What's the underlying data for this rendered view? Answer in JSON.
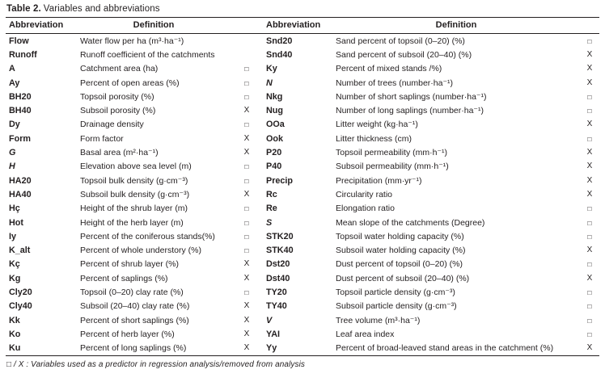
{
  "colors": {
    "text": "#231f20",
    "rule": "#231f20",
    "background": "#ffffff"
  },
  "caption": {
    "number": "Table 2.",
    "text": "Variables and abbreviations"
  },
  "header": {
    "abbreviation_left": "Abbreviation",
    "definition_left": "Definition",
    "abbreviation_right": "Abbreviation",
    "definition_right": "Definition"
  },
  "marker_glyphs": {
    "predictor": "□",
    "removed": "X"
  },
  "rows_left": [
    {
      "abbr": "Flow",
      "italic": false,
      "def": "Water flow per ha (m³·ha⁻¹)",
      "mark": ""
    },
    {
      "abbr": "Runoff",
      "italic": false,
      "def": "Runoff coefficient of the catchments",
      "mark": ""
    },
    {
      "abbr": "A",
      "italic": false,
      "def": "Catchment area (ha)",
      "mark": "□"
    },
    {
      "abbr": "Ay",
      "italic": false,
      "def": "Percent of open areas (%)",
      "mark": "□"
    },
    {
      "abbr": "BH20",
      "italic": false,
      "def": "Topsoil porosity (%)",
      "mark": "□"
    },
    {
      "abbr": "BH40",
      "italic": false,
      "def": "Subsoil porosity (%)",
      "mark": "X"
    },
    {
      "abbr": "Dy",
      "italic": false,
      "def": "Drainage density",
      "mark": "□"
    },
    {
      "abbr": "Form",
      "italic": false,
      "def": "Form factor",
      "mark": "X"
    },
    {
      "abbr": "G",
      "italic": true,
      "def": "Basal area (m²·ha⁻¹)",
      "mark": "X"
    },
    {
      "abbr": "H",
      "italic": true,
      "def": "Elevation above sea level (m)",
      "mark": "□"
    },
    {
      "abbr": "HA20",
      "italic": false,
      "def": "Topsoil bulk density (g·cm⁻³)",
      "mark": "□"
    },
    {
      "abbr": "HA40",
      "italic": false,
      "def": "Subsoil bulk density (g·cm⁻³)",
      "mark": "X"
    },
    {
      "abbr": "Hç",
      "italic": false,
      "def": "Height of the shrub layer (m)",
      "mark": "□"
    },
    {
      "abbr": "Hot",
      "italic": false,
      "def": "Height of the herb layer (m)",
      "mark": "□"
    },
    {
      "abbr": "Iy",
      "italic": false,
      "def": "Percent of the coniferous stands(%)",
      "mark": "□"
    },
    {
      "abbr": "K_alt",
      "italic": false,
      "def": "Percent of whole understory (%)",
      "mark": "□"
    },
    {
      "abbr": "Kç",
      "italic": false,
      "def": "Percent of shrub layer (%)",
      "mark": "X"
    },
    {
      "abbr": "Kg",
      "italic": false,
      "def": "Percent of saplings (%)",
      "mark": "X"
    },
    {
      "abbr": "Cly20",
      "italic": false,
      "def": "Topsoil (0–20) clay rate (%)",
      "mark": "□"
    },
    {
      "abbr": "Cly40",
      "italic": false,
      "def": "Subsoil (20–40) clay rate (%)",
      "mark": "X"
    },
    {
      "abbr": "Kk",
      "italic": false,
      "def": "Percent of short saplings (%)",
      "mark": "X"
    },
    {
      "abbr": "Ko",
      "italic": false,
      "def": "Percent of herb layer (%)",
      "mark": "X"
    },
    {
      "abbr": "Ku",
      "italic": false,
      "def": "Percent of long saplings (%)",
      "mark": "X"
    }
  ],
  "rows_right": [
    {
      "abbr": "Snd20",
      "italic": false,
      "def": "Sand percent of topsoil (0–20) (%)",
      "mark": "□"
    },
    {
      "abbr": "Snd40",
      "italic": false,
      "def": "Sand percent of subsoil (20–40) (%)",
      "mark": "X"
    },
    {
      "abbr": "Ky",
      "italic": false,
      "def": "Percent of mixed stands /%)",
      "mark": "X"
    },
    {
      "abbr": "N",
      "italic": true,
      "def": "Number of trees (number·ha⁻¹)",
      "mark": "X"
    },
    {
      "abbr": "Nkg",
      "italic": false,
      "def": "Number of short saplings (number·ha⁻¹)",
      "mark": "□"
    },
    {
      "abbr": "Nug",
      "italic": false,
      "def": "Number of long saplings (number·ha⁻¹)",
      "mark": "□"
    },
    {
      "abbr": "OOa",
      "italic": false,
      "def": "Litter weight (kg·ha⁻¹)",
      "mark": "X"
    },
    {
      "abbr": "Ook",
      "italic": false,
      "def": "Litter thickness (cm)",
      "mark": "□"
    },
    {
      "abbr": "P20",
      "italic": false,
      "def": "Topsoil permeability (mm·h⁻¹)",
      "mark": "X"
    },
    {
      "abbr": "P40",
      "italic": false,
      "def": "Subsoil permeability (mm·h⁻¹)",
      "mark": "X"
    },
    {
      "abbr": "Precip",
      "italic": false,
      "def": "Precipitation (mm·yr⁻¹)",
      "mark": "X"
    },
    {
      "abbr": "Rc",
      "italic": false,
      "def": "Circularity ratio",
      "mark": "X"
    },
    {
      "abbr": "Re",
      "italic": false,
      "def": "Elongation ratio",
      "mark": "□"
    },
    {
      "abbr": "S",
      "italic": true,
      "def": "Mean slope of the catchments (Degree)",
      "mark": "□"
    },
    {
      "abbr": "STK20",
      "italic": false,
      "def": "Topsoil water holding capacity (%)",
      "mark": "□"
    },
    {
      "abbr": "STK40",
      "italic": false,
      "def": "Subsoil water holding capacity (%)",
      "mark": "X"
    },
    {
      "abbr": "Dst20",
      "italic": false,
      "def": "Dust percent of topsoil (0–20) (%)",
      "mark": "□"
    },
    {
      "abbr": "Dst40",
      "italic": false,
      "def": "Dust percent of subsoil (20–40) (%)",
      "mark": "X"
    },
    {
      "abbr": "TY20",
      "italic": false,
      "def": "Topsoil particle density (g·cm⁻³)",
      "mark": "□"
    },
    {
      "abbr": "TY40",
      "italic": false,
      "def": "Subsoil particle density (g·cm⁻³)",
      "mark": "□"
    },
    {
      "abbr": "V",
      "italic": true,
      "def": "Tree volume (m³·ha⁻¹)",
      "mark": "□"
    },
    {
      "abbr": "YAI",
      "italic": false,
      "def": "Leaf area index",
      "mark": "□"
    },
    {
      "abbr": "Yy",
      "italic": false,
      "def": "Percent of broad-leaved stand areas in the catchment (%)",
      "mark": "X"
    }
  ],
  "footnote": {
    "text": "□ / X : Variables used as a predictor in regression analysis/removed from analysis"
  }
}
